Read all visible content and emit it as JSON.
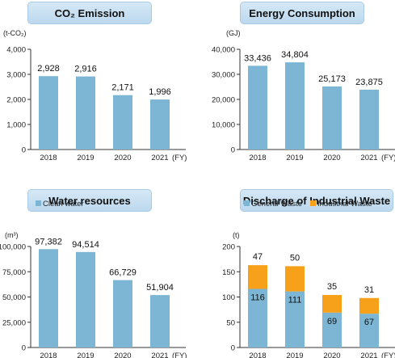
{
  "titles": {
    "co2": "CO₂ Emission",
    "energy": "Energy Consumption",
    "water": "Water resources",
    "waste": "Discharge of Industrial Waste"
  },
  "units": {
    "co2": "(t-CO₂)",
    "energy": "(GJ)",
    "water": "(m³)",
    "waste": "(t)"
  },
  "fy_label": "(FY)",
  "colors": {
    "bar": "#7db6d5",
    "industrial": "#f7a11b",
    "axis": "#333333"
  },
  "chart_data": [
    {
      "id": "co2",
      "type": "bar",
      "categories": [
        "2018",
        "2019",
        "2020",
        "2021"
      ],
      "values": [
        2928,
        2916,
        2171,
        1996
      ],
      "value_labels": [
        "2,928",
        "2,916",
        "2,171",
        "1,996"
      ],
      "ylim": [
        0,
        4000
      ],
      "yticks": [
        0,
        1000,
        2000,
        3000,
        4000
      ],
      "ytick_labels": [
        "0",
        "1,000",
        "2,000",
        "3,000",
        "4,000"
      ]
    },
    {
      "id": "energy",
      "type": "bar",
      "categories": [
        "2018",
        "2019",
        "2020",
        "2021"
      ],
      "values": [
        33436,
        34804,
        25173,
        23875
      ],
      "value_labels": [
        "33,436",
        "34,804",
        "25,173",
        "23,875"
      ],
      "ylim": [
        0,
        40000
      ],
      "yticks": [
        0,
        10000,
        20000,
        30000,
        40000
      ],
      "ytick_labels": [
        "0",
        "10,000",
        "20,000",
        "30,000",
        "40,000"
      ]
    },
    {
      "id": "water",
      "type": "bar",
      "categories": [
        "2018",
        "2019",
        "2020",
        "2021"
      ],
      "series": [
        {
          "name": "Clean water",
          "values": [
            97382,
            94514,
            66729,
            51904
          ]
        }
      ],
      "value_labels": [
        "97,382",
        "94,514",
        "66,729",
        "51,904"
      ],
      "ylim": [
        0,
        100000
      ],
      "yticks": [
        0,
        25000,
        50000,
        75000,
        100000
      ],
      "ytick_labels": [
        "0",
        "25,000",
        "50,000",
        "75,000",
        "100,000"
      ],
      "legend": "top-left"
    },
    {
      "id": "waste",
      "type": "bar",
      "stacked": true,
      "categories": [
        "2018",
        "2019",
        "2020",
        "2021"
      ],
      "series": [
        {
          "name": "General Waste",
          "values": [
            116,
            111,
            69,
            67
          ]
        },
        {
          "name": "Industrial Waste",
          "values": [
            47,
            50,
            35,
            31
          ]
        }
      ],
      "ylim": [
        0,
        200
      ],
      "yticks": [
        0,
        50,
        100,
        150,
        200
      ],
      "ytick_labels": [
        "0",
        "50",
        "100",
        "150",
        "200"
      ],
      "legend": "top-left"
    }
  ]
}
